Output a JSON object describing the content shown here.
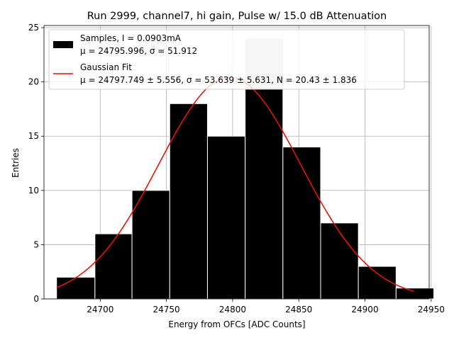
{
  "chart_data": {
    "type": "bar",
    "title": "Run 2999, channel7, hi gain, Pulse w/ 15.0 dB Attenuation",
    "xlabel": "Energy from OFCs [ADC Counts]",
    "ylabel": "Entries",
    "xlim": [
      24657.5,
      24948.5
    ],
    "ylim": [
      0,
      25.2
    ],
    "xticks": [
      24700,
      24750,
      24800,
      24850,
      24900,
      24950
    ],
    "yticks": [
      0,
      5,
      10,
      15,
      20,
      25
    ],
    "grid": true,
    "legend_position": "top-left",
    "bins": [
      {
        "x0": 24667.0,
        "x1": 24696.0,
        "value": 2
      },
      {
        "x0": 24696.0,
        "x1": 24724.0,
        "value": 6
      },
      {
        "x0": 24724.0,
        "x1": 24752.5,
        "value": 10
      },
      {
        "x0": 24752.5,
        "x1": 24781.0,
        "value": 18
      },
      {
        "x0": 24781.0,
        "x1": 24809.5,
        "value": 15
      },
      {
        "x0": 24809.5,
        "x1": 24838.0,
        "value": 24
      },
      {
        "x0": 24838.0,
        "x1": 24866.5,
        "value": 14
      },
      {
        "x0": 24866.5,
        "x1": 24895.0,
        "value": 7
      },
      {
        "x0": 24895.0,
        "x1": 24923.5,
        "value": 3
      },
      {
        "x0": 24923.5,
        "x1": 24952.0,
        "value": 1
      }
    ],
    "series": [
      {
        "name": "Samples, I = 0.0903mA",
        "stats": "μ = 24795.996, σ = 51.912",
        "color": "#000000"
      },
      {
        "name": "Gaussian Fit",
        "stats": "μ = 24797.749 ± 5.556, σ = 53.639 ± 5.631, N = 20.43 ± 1.836",
        "color": "#e8120c",
        "fit": {
          "mu": 24797.749,
          "sigma": 53.639,
          "N": 20.43,
          "x_range": [
            24667,
            24937
          ]
        }
      }
    ]
  }
}
